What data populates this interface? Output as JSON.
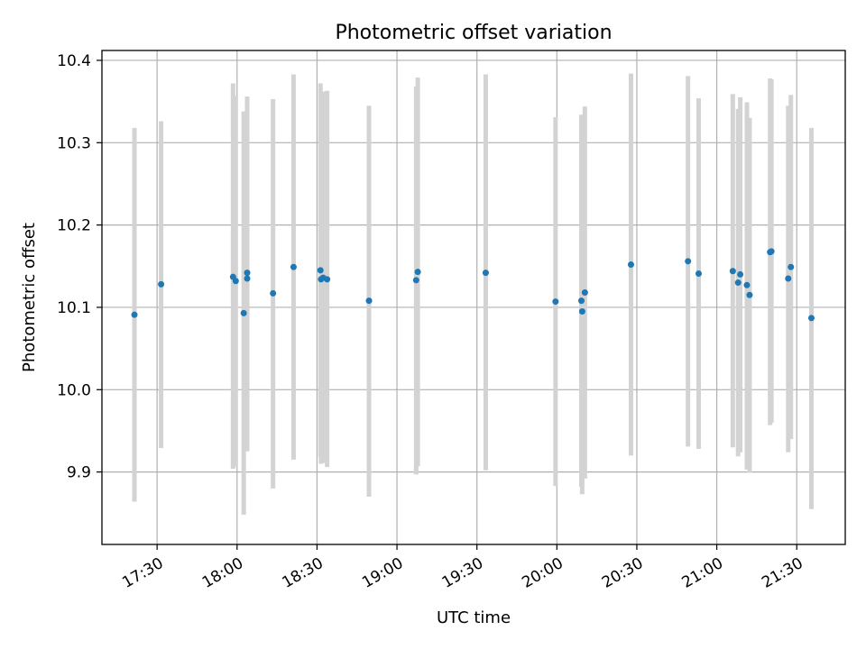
{
  "chart_data": {
    "type": "scatter",
    "title": "Photometric offset variation",
    "xlabel": "UTC time",
    "ylabel": "Photometric offset",
    "grid": true,
    "xlim": [
      "17:09.3",
      "21:48.2"
    ],
    "ylim": [
      9.812,
      10.412
    ],
    "xticks": [
      "17:30",
      "18:00",
      "18:30",
      "19:00",
      "19:30",
      "20:00",
      "20:30",
      "21:00",
      "21:30"
    ],
    "yticks": [
      9.9,
      10.0,
      10.1,
      10.2,
      10.3,
      10.4
    ],
    "errorbar_color": "#d3d3d3",
    "marker_color": "#1f77b4",
    "points": [
      {
        "x": "17:21.5",
        "y": 10.091,
        "ylo": 9.864,
        "yhi": 10.318
      },
      {
        "x": "17:31.5",
        "y": 10.128,
        "ylo": 9.929,
        "yhi": 10.326
      },
      {
        "x": "17:58.5",
        "y": 10.137,
        "ylo": 9.904,
        "yhi": 10.372
      },
      {
        "x": "17:59.5",
        "y": 10.132,
        "ylo": 9.907,
        "yhi": 10.357
      },
      {
        "x": "18:02.5",
        "y": 10.093,
        "ylo": 9.848,
        "yhi": 10.338
      },
      {
        "x": "18:03.8",
        "y": 10.142,
        "ylo": 9.927,
        "yhi": 10.356
      },
      {
        "x": "18:03.8",
        "y": 10.135,
        "ylo": 9.925,
        "yhi": 10.345
      },
      {
        "x": "18:13.5",
        "y": 10.117,
        "ylo": 9.88,
        "yhi": 10.353
      },
      {
        "x": "18:21.2",
        "y": 10.149,
        "ylo": 9.915,
        "yhi": 10.383
      },
      {
        "x": "18:31.3",
        "y": 10.145,
        "ylo": 9.918,
        "yhi": 10.372
      },
      {
        "x": "18:31.5",
        "y": 10.134,
        "ylo": 9.91,
        "yhi": 10.358
      },
      {
        "x": "18:32.3",
        "y": 10.136,
        "ylo": 9.911,
        "yhi": 10.362
      },
      {
        "x": "18:33.8",
        "y": 10.134,
        "ylo": 9.906,
        "yhi": 10.363
      },
      {
        "x": "18:49.5",
        "y": 10.108,
        "ylo": 9.87,
        "yhi": 10.345
      },
      {
        "x": "19:07.2",
        "y": 10.133,
        "ylo": 9.897,
        "yhi": 10.368
      },
      {
        "x": "19:07.8",
        "y": 10.143,
        "ylo": 9.907,
        "yhi": 10.379
      },
      {
        "x": "19:33.3",
        "y": 10.142,
        "ylo": 9.902,
        "yhi": 10.383
      },
      {
        "x": "19:59.5",
        "y": 10.107,
        "ylo": 9.883,
        "yhi": 10.331
      },
      {
        "x": "20:09.2",
        "y": 10.108,
        "ylo": 9.882,
        "yhi": 10.334
      },
      {
        "x": "20:09.5",
        "y": 10.095,
        "ylo": 9.873,
        "yhi": 10.318
      },
      {
        "x": "20:10.5",
        "y": 10.118,
        "ylo": 9.892,
        "yhi": 10.344
      },
      {
        "x": "20:27.8",
        "y": 10.152,
        "ylo": 9.92,
        "yhi": 10.384
      },
      {
        "x": "20:49.2",
        "y": 10.156,
        "ylo": 9.931,
        "yhi": 10.381
      },
      {
        "x": "20:53.2",
        "y": 10.141,
        "ylo": 9.928,
        "yhi": 10.354
      },
      {
        "x": "21:06.0",
        "y": 10.144,
        "ylo": 9.93,
        "yhi": 10.359
      },
      {
        "x": "21:08.0",
        "y": 10.13,
        "ylo": 9.919,
        "yhi": 10.341
      },
      {
        "x": "21:08.8",
        "y": 10.14,
        "ylo": 9.924,
        "yhi": 10.355
      },
      {
        "x": "21:11.3",
        "y": 10.127,
        "ylo": 9.903,
        "yhi": 10.349
      },
      {
        "x": "21:12.3",
        "y": 10.115,
        "ylo": 9.899,
        "yhi": 10.33
      },
      {
        "x": "21:20.0",
        "y": 10.167,
        "ylo": 9.957,
        "yhi": 10.378
      },
      {
        "x": "21:20.5",
        "y": 10.168,
        "ylo": 9.96,
        "yhi": 10.377
      },
      {
        "x": "21:26.8",
        "y": 10.135,
        "ylo": 9.924,
        "yhi": 10.345
      },
      {
        "x": "21:27.8",
        "y": 10.149,
        "ylo": 9.94,
        "yhi": 10.358
      },
      {
        "x": "21:35.5",
        "y": 10.087,
        "ylo": 9.855,
        "yhi": 10.318
      }
    ]
  }
}
